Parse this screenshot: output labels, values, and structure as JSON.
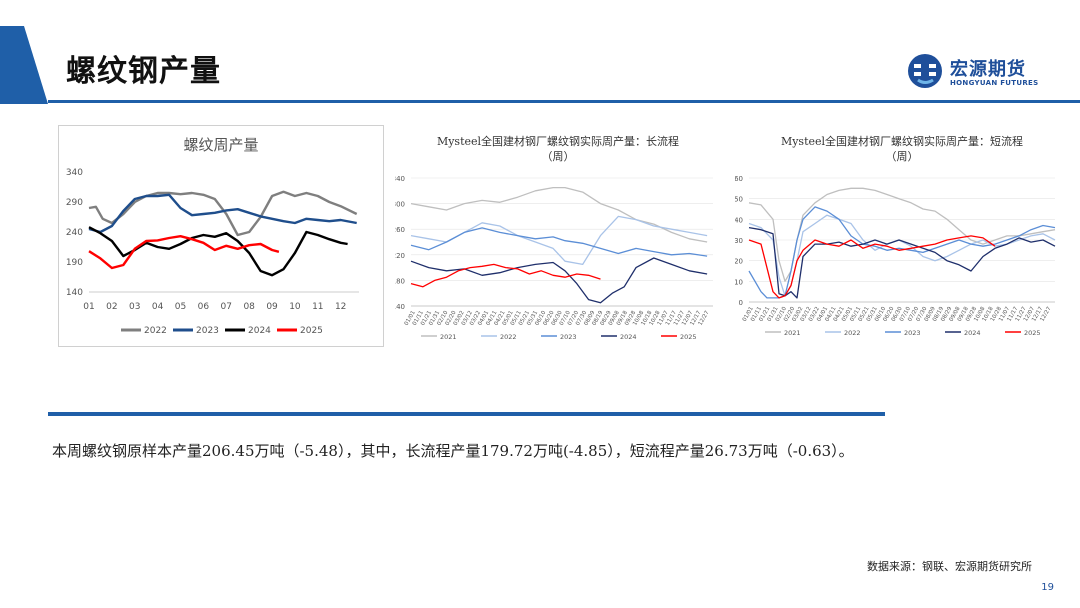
{
  "page": {
    "title": "螺纹钢产量",
    "logo": {
      "text": "宏源期货",
      "sub": "HONGYUAN FUTURES"
    },
    "summary": "本周螺纹钢原样本产量206.45万吨（-5.48），其中，长流程产量179.72万吨(-4.85），短流程产量26.73万吨（-0.63）。",
    "source": "数据来源：钢联、宏源期货研究所",
    "page_number": "19",
    "colors": {
      "accent": "#1f5fa8",
      "logo": "#1f4f9a"
    }
  },
  "chart_data": [
    {
      "type": "line",
      "title": "螺纹周产量",
      "xlabel": "",
      "ylabel": "",
      "x_ticks": [
        "01",
        "02",
        "03",
        "04",
        "05",
        "06",
        "07",
        "08",
        "09",
        "10",
        "11",
        "12"
      ],
      "y_ticks": [
        140,
        190,
        240,
        290,
        340
      ],
      "xlim": [
        1,
        12.8
      ],
      "ylim": [
        140,
        340
      ],
      "grid": false,
      "legend": "bottom",
      "series": [
        {
          "name": "2022",
          "color": "#7f7f7f",
          "x": [
            1,
            1.3,
            1.6,
            2,
            2.5,
            3,
            3.5,
            4,
            4.5,
            5,
            5.5,
            6,
            6.5,
            7,
            7.5,
            8,
            8.5,
            9,
            9.5,
            10,
            10.5,
            11,
            11.5,
            12,
            12.7
          ],
          "values": [
            280,
            282,
            262,
            255,
            270,
            290,
            300,
            305,
            305,
            303,
            305,
            302,
            295,
            270,
            235,
            240,
            265,
            300,
            307,
            300,
            305,
            300,
            290,
            283,
            270
          ]
        },
        {
          "name": "2023",
          "color": "#1f4e8c",
          "x": [
            1,
            1.5,
            2,
            2.5,
            3,
            3.5,
            4,
            4.5,
            5,
            5.5,
            6,
            6.5,
            7,
            7.5,
            8,
            8.5,
            9,
            9.5,
            10,
            10.5,
            11,
            11.5,
            12,
            12.7
          ],
          "values": [
            245,
            240,
            250,
            275,
            295,
            300,
            300,
            302,
            280,
            268,
            270,
            272,
            276,
            278,
            272,
            266,
            262,
            258,
            255,
            262,
            260,
            258,
            260,
            255
          ]
        },
        {
          "name": "2024",
          "color": "#000000",
          "x": [
            1,
            1.5,
            2,
            2.5,
            3,
            3.5,
            4,
            4.5,
            5,
            5.5,
            6,
            6.5,
            7,
            7.5,
            8,
            8.5,
            9,
            9.5,
            10,
            10.5,
            11,
            11.5,
            12,
            12.3
          ],
          "values": [
            248,
            238,
            225,
            200,
            210,
            222,
            215,
            212,
            220,
            230,
            235,
            232,
            238,
            225,
            205,
            175,
            168,
            178,
            205,
            240,
            235,
            228,
            222,
            220
          ]
        },
        {
          "name": "2025",
          "color": "#ff0000",
          "x": [
            1,
            1.5,
            2,
            2.5,
            3,
            3.5,
            4,
            4.5,
            5,
            5.5,
            6,
            6.5,
            7,
            7.5,
            8,
            8.5,
            9,
            9.3
          ],
          "values": [
            208,
            196,
            180,
            185,
            212,
            225,
            226,
            230,
            233,
            228,
            222,
            210,
            217,
            212,
            218,
            220,
            210,
            207
          ]
        }
      ]
    },
    {
      "type": "line",
      "title": "Mysteel全国建材钢厂螺纹钢实际周产量：长流程",
      "subtitle": "（周）",
      "xlabel": "",
      "ylabel": "",
      "x_ticks": [
        "01/01",
        "01/11",
        "01/21",
        "01/31",
        "02/10",
        "02/20",
        "03/02",
        "03/12",
        "03/22",
        "04/01",
        "04/11",
        "04/21",
        "05/01",
        "05/11",
        "05/21",
        "05/31",
        "06/10",
        "06/20",
        "06/30",
        "07/10",
        "07/20",
        "07/30",
        "08/09",
        "08/19",
        "08/29",
        "09/08",
        "09/18",
        "09/28",
        "10/08",
        "10/18",
        "10/28",
        "11/07",
        "11/17",
        "11/27",
        "12/07",
        "12/17",
        "12/27"
      ],
      "y_ticks": [
        140,
        180,
        220,
        260,
        300,
        340
      ],
      "xlim": [
        1,
        52
      ],
      "ylim": [
        140,
        340
      ],
      "grid": true,
      "legend": "bottom",
      "series": [
        {
          "name": "2021",
          "color": "#bfbfbf",
          "x": [
            1,
            4,
            7,
            10,
            13,
            16,
            19,
            22,
            25,
            27,
            30,
            33,
            36,
            39,
            42,
            45,
            48,
            51
          ],
          "values": [
            300,
            295,
            290,
            300,
            305,
            302,
            310,
            320,
            325,
            325,
            318,
            300,
            290,
            275,
            268,
            255,
            245,
            240
          ]
        },
        {
          "name": "2022",
          "color": "#a9c3e8",
          "x": [
            1,
            4,
            7,
            10,
            13,
            16,
            19,
            22,
            25,
            27,
            30,
            33,
            36,
            39,
            42,
            45,
            48,
            51
          ],
          "values": [
            250,
            245,
            240,
            255,
            270,
            265,
            250,
            240,
            230,
            210,
            205,
            250,
            280,
            275,
            265,
            260,
            255,
            250
          ]
        },
        {
          "name": "2023",
          "color": "#5b8ed6",
          "x": [
            1,
            4,
            7,
            10,
            13,
            16,
            19,
            22,
            25,
            27,
            30,
            33,
            36,
            39,
            42,
            45,
            48,
            51
          ],
          "values": [
            235,
            228,
            240,
            255,
            262,
            255,
            250,
            245,
            248,
            242,
            238,
            230,
            222,
            230,
            225,
            220,
            222,
            218
          ]
        },
        {
          "name": "2024",
          "color": "#1f2f6b",
          "x": [
            1,
            4,
            7,
            10,
            13,
            16,
            19,
            22,
            25,
            27,
            29,
            31,
            33,
            35,
            37,
            39,
            42,
            45,
            48,
            51
          ],
          "values": [
            210,
            200,
            195,
            198,
            188,
            192,
            200,
            205,
            208,
            195,
            175,
            150,
            145,
            160,
            170,
            200,
            215,
            205,
            195,
            190
          ]
        },
        {
          "name": "2025",
          "color": "#ff0000",
          "x": [
            1,
            3,
            5,
            7,
            9,
            11,
            13,
            15,
            17,
            19,
            21,
            23,
            25,
            27,
            29,
            31,
            33
          ],
          "values": [
            175,
            170,
            180,
            185,
            195,
            200,
            202,
            205,
            200,
            198,
            190,
            195,
            188,
            185,
            190,
            188,
            182
          ]
        }
      ]
    },
    {
      "type": "line",
      "title": "Mysteel全国建材钢厂螺纹钢实际周产量：短流程",
      "subtitle": "（周）",
      "xlabel": "",
      "ylabel": "",
      "x_ticks": [
        "01/01",
        "01/11",
        "01/21",
        "01/31",
        "02/10",
        "02/20",
        "03/02",
        "03/12",
        "03/22",
        "04/01",
        "04/11",
        "04/21",
        "05/01",
        "05/11",
        "05/21",
        "05/31",
        "06/10",
        "06/20",
        "06/30",
        "07/10",
        "07/20",
        "07/30",
        "08/09",
        "08/19",
        "08/29",
        "09/08",
        "09/18",
        "09/28",
        "10/08",
        "10/18",
        "10/28",
        "11/07",
        "11/17",
        "11/27",
        "12/07",
        "12/17",
        "12/27"
      ],
      "y_ticks": [
        0,
        10,
        20,
        30,
        40,
        50,
        60
      ],
      "xlim": [
        1,
        52
      ],
      "ylim": [
        0,
        60
      ],
      "grid": true,
      "legend": "bottom",
      "series": [
        {
          "name": "2021",
          "color": "#bfbfbf",
          "x": [
            1,
            3,
            5,
            6,
            7,
            8,
            9,
            10,
            12,
            14,
            16,
            18,
            20,
            22,
            24,
            26,
            28,
            30,
            32,
            34,
            36,
            38,
            40,
            42,
            44,
            46,
            48,
            50,
            52
          ],
          "values": [
            48,
            47,
            40,
            20,
            10,
            15,
            30,
            42,
            48,
            52,
            54,
            55,
            55,
            54,
            52,
            50,
            48,
            45,
            44,
            40,
            35,
            30,
            28,
            30,
            32,
            32,
            33,
            34,
            35
          ]
        },
        {
          "name": "2022",
          "color": "#a9c3e8",
          "x": [
            1,
            3,
            5,
            6,
            7,
            8,
            9,
            10,
            12,
            14,
            16,
            18,
            20,
            22,
            24,
            26,
            28,
            30,
            32,
            34,
            36,
            38,
            40,
            42,
            44,
            46,
            48,
            50,
            52
          ],
          "values": [
            38,
            36,
            30,
            12,
            3,
            8,
            20,
            34,
            38,
            42,
            40,
            38,
            30,
            25,
            28,
            30,
            27,
            22,
            20,
            22,
            25,
            28,
            30,
            27,
            28,
            30,
            32,
            33,
            30
          ]
        },
        {
          "name": "2023",
          "color": "#5b8ed6",
          "x": [
            1,
            3,
            4,
            5,
            6,
            7,
            8,
            9,
            10,
            12,
            14,
            16,
            18,
            20,
            22,
            24,
            26,
            28,
            30,
            32,
            34,
            36,
            38,
            40,
            42,
            44,
            46,
            48,
            50,
            52
          ],
          "values": [
            15,
            5,
            2,
            2,
            2,
            3,
            15,
            30,
            40,
            46,
            44,
            40,
            32,
            28,
            27,
            25,
            26,
            25,
            24,
            26,
            28,
            30,
            28,
            27,
            28,
            30,
            32,
            35,
            37,
            36
          ]
        },
        {
          "name": "2024",
          "color": "#1f2f6b",
          "x": [
            1,
            3,
            5,
            6,
            7,
            8,
            9,
            10,
            12,
            14,
            16,
            18,
            20,
            22,
            24,
            26,
            28,
            30,
            32,
            34,
            36,
            38,
            40,
            42,
            44,
            46,
            48,
            50,
            52
          ],
          "values": [
            36,
            35,
            33,
            4,
            3,
            5,
            2,
            22,
            28,
            28,
            29,
            27,
            28,
            30,
            28,
            30,
            28,
            26,
            24,
            20,
            18,
            15,
            22,
            26,
            28,
            31,
            29,
            30,
            27
          ]
        },
        {
          "name": "2025",
          "color": "#ff0000",
          "x": [
            1,
            3,
            5,
            6,
            7,
            8,
            9,
            10,
            12,
            14,
            16,
            18,
            20,
            22,
            24,
            26,
            28,
            30,
            32,
            34,
            36,
            38,
            40,
            42
          ],
          "values": [
            30,
            28,
            5,
            2,
            3,
            8,
            20,
            25,
            30,
            28,
            27,
            30,
            26,
            28,
            27,
            25,
            26,
            27,
            28,
            30,
            31,
            32,
            31,
            27
          ]
        }
      ]
    }
  ]
}
